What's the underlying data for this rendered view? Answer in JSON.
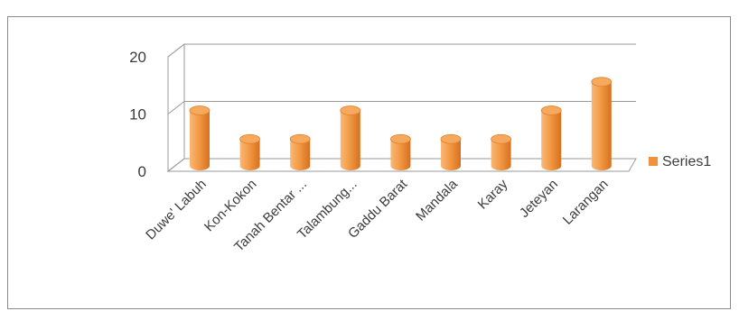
{
  "chart_data": {
    "type": "bar",
    "categories": [
      "Duwe' Labuh",
      "Kon-Kokon",
      "Tanah Bentar ...",
      "Talambung...",
      "Gaddu Barat",
      "Mandala",
      "Karay",
      "Jeteyan",
      "Larangan"
    ],
    "series": [
      {
        "name": "Series1",
        "values": [
          10,
          5,
          5,
          10,
          5,
          5,
          5,
          10,
          15
        ],
        "color": "#f2913d"
      }
    ],
    "ylim": [
      0,
      20
    ],
    "yticks": [
      0,
      10,
      20
    ],
    "grid": true,
    "legend": "right",
    "three_d": true
  }
}
